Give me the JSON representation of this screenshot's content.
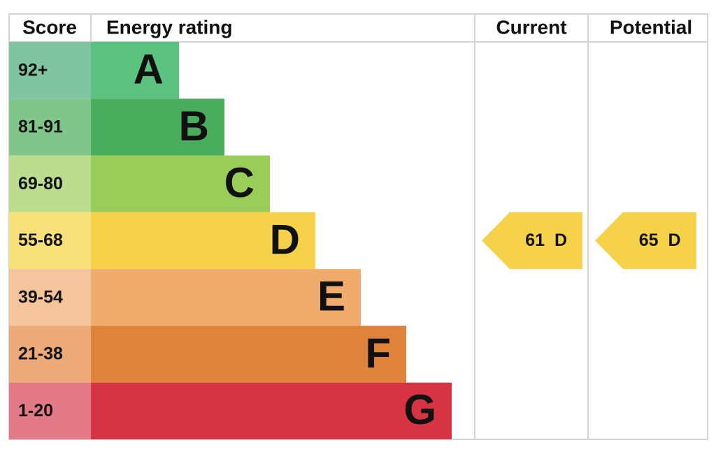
{
  "headers": {
    "score": "Score",
    "rating": "Energy rating",
    "current": "Current",
    "potential": "Potential"
  },
  "bands": [
    {
      "score": "92+",
      "letter": "A",
      "color": "#5bc27f",
      "score_color": "#7fc5a2"
    },
    {
      "score": "81-91",
      "letter": "B",
      "color": "#4aad5e",
      "score_color": "#80c58a"
    },
    {
      "score": "69-80",
      "letter": "C",
      "color": "#9acc5a",
      "score_color": "#bcdd8f"
    },
    {
      "score": "55-68",
      "letter": "D",
      "color": "#f6d24a",
      "score_color": "#f8e07a"
    },
    {
      "score": "39-54",
      "letter": "E",
      "color": "#f0ac6c",
      "score_color": "#f4c59c"
    },
    {
      "score": "21-38",
      "letter": "F",
      "color": "#e0833a",
      "score_color": "#ebaa78"
    },
    {
      "score": "1-20",
      "letter": "G",
      "color": "#d63343",
      "score_color": "#e47a88"
    }
  ],
  "current": {
    "value": 61,
    "letter": "D"
  },
  "potential": {
    "value": 65,
    "letter": "D"
  }
}
